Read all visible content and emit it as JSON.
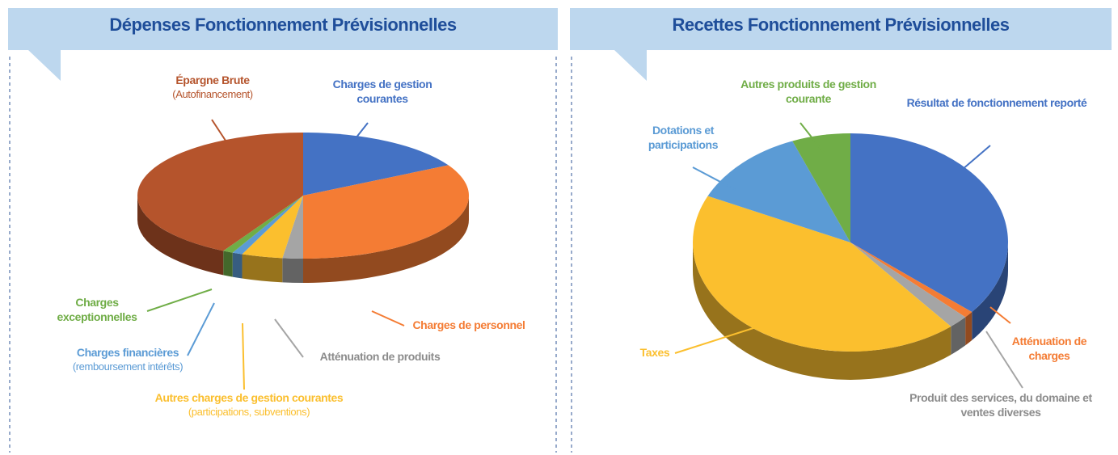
{
  "chart_data": [
    {
      "type": "pie",
      "title": "Dépenses Fonctionnement Prévisionnelles",
      "categories": [
        "Charges de gestion courantes",
        "Charges de personnel",
        "Atténuation de produits",
        "Autres charges de gestion courantes",
        "Charges financières",
        "Charges exceptionnelles",
        "Épargne Brute"
      ],
      "sublabels": [
        null,
        null,
        null,
        "(participations, subventions)",
        "(remboursement intérêts)",
        null,
        "(Autofinancement)"
      ],
      "values": [
        17,
        33,
        2,
        4,
        1,
        1,
        42
      ],
      "colors": [
        "#4472c4",
        "#f47c34",
        "#a5a5a5",
        "#fbbf2e",
        "#5b9bd5",
        "#70ad47",
        "#b5542c"
      ]
    },
    {
      "type": "pie",
      "title": "Recettes Fonctionnement Prévisionnelles",
      "categories": [
        "Résultat de fonctionnement reporté",
        "Atténuation de charges",
        "Produit des services, du domaine et ventes diverses",
        "Taxes",
        "Dotations et participations",
        "Autres produits de gestion courante"
      ],
      "values": [
        36,
        1,
        2,
        43,
        12,
        6
      ],
      "colors": [
        "#4472c4",
        "#f47c34",
        "#a5a5a5",
        "#fbbf2e",
        "#5b9bd5",
        "#70ad47"
      ]
    }
  ]
}
